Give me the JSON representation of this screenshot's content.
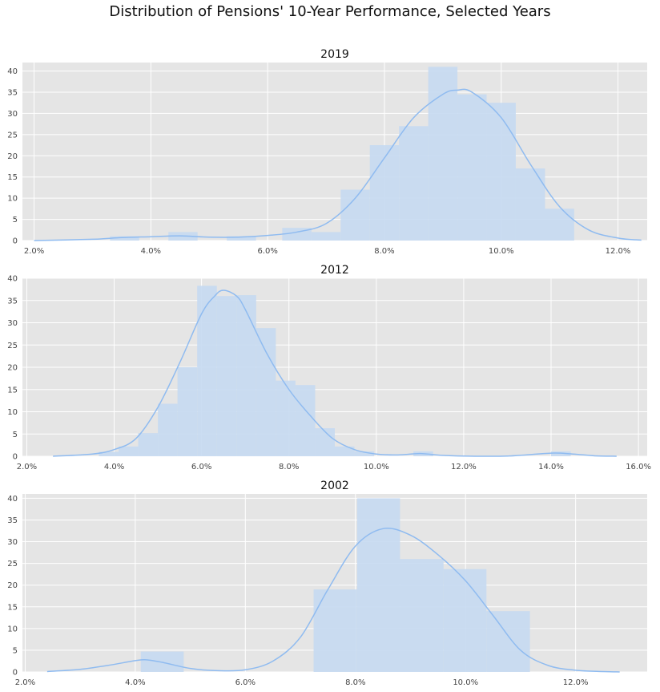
{
  "figure": {
    "title": "Distribution of Pensions' 10-Year Performance, Selected Years"
  },
  "style": {
    "plot_background": "#e5e5e5",
    "grid_color": "#ffffff",
    "bar_color": "#c5d9f1",
    "kde_color": "#8fbbf0",
    "text_color": "#111111"
  },
  "chart_data": [
    {
      "type": "bar",
      "title": "2019",
      "xlabel": "",
      "ylabel": "",
      "xlim": [
        1.8,
        12.5
      ],
      "ylim": [
        0,
        42
      ],
      "grid": true,
      "x_ticks": [
        2,
        4,
        6,
        8,
        10,
        12
      ],
      "x_tick_labels": [
        "2.0%",
        "4.0%",
        "6.0%",
        "8.0%",
        "10.0%",
        "12.0%"
      ],
      "y_ticks": [
        0,
        5,
        10,
        15,
        20,
        25,
        30,
        35,
        40
      ],
      "y_tick_labels": [
        "0",
        "5",
        "10",
        "15",
        "20",
        "25",
        "30",
        "35",
        "40"
      ],
      "bins": [
        {
          "x0": 3.3,
          "x1": 3.8,
          "count": 1
        },
        {
          "x0": 4.3,
          "x1": 4.8,
          "count": 2
        },
        {
          "x0": 5.3,
          "x1": 5.8,
          "count": 1
        },
        {
          "x0": 6.25,
          "x1": 6.75,
          "count": 3
        },
        {
          "x0": 6.75,
          "x1": 7.25,
          "count": 2
        },
        {
          "x0": 7.25,
          "x1": 7.75,
          "count": 12
        },
        {
          "x0": 7.75,
          "x1": 8.25,
          "count": 22.5
        },
        {
          "x0": 8.25,
          "x1": 8.75,
          "count": 27
        },
        {
          "x0": 8.75,
          "x1": 9.25,
          "count": 41
        },
        {
          "x0": 9.25,
          "x1": 9.75,
          "count": 34.5
        },
        {
          "x0": 9.75,
          "x1": 10.25,
          "count": 32.5
        },
        {
          "x0": 10.25,
          "x1": 10.75,
          "count": 17
        },
        {
          "x0": 10.75,
          "x1": 11.25,
          "count": 7.5
        }
      ],
      "kde": {
        "x": [
          2.0,
          3.0,
          3.5,
          4.0,
          4.5,
          5.0,
          5.5,
          6.0,
          6.5,
          7.0,
          7.5,
          8.0,
          8.5,
          9.0,
          9.25,
          9.5,
          10.0,
          10.5,
          11.0,
          11.5,
          12.0,
          12.4
        ],
        "y": [
          0,
          0.3,
          0.7,
          0.9,
          1.1,
          0.8,
          0.8,
          1.2,
          2.0,
          4.0,
          10,
          19.5,
          29,
          34.5,
          35.5,
          35,
          29,
          18,
          8,
          2.5,
          0.6,
          0.1
        ]
      }
    },
    {
      "type": "bar",
      "title": "2012",
      "xlabel": "",
      "ylabel": "",
      "xlim": [
        1.9,
        16.2
      ],
      "ylim": [
        0,
        40
      ],
      "grid": true,
      "x_ticks": [
        2,
        4,
        6,
        8,
        10,
        12,
        14,
        16
      ],
      "x_tick_labels": [
        "2.0%",
        "4.0%",
        "6.0%",
        "8.0%",
        "10.0%",
        "12.0%",
        "14.0%",
        "16.0%"
      ],
      "y_ticks": [
        0,
        5,
        10,
        15,
        20,
        25,
        30,
        35,
        40
      ],
      "y_tick_labels": [
        "0",
        "5",
        "10",
        "15",
        "20",
        "25",
        "30",
        "35",
        "40"
      ],
      "bins": [
        {
          "x0": 3.65,
          "x1": 4.1,
          "count": 1
        },
        {
          "x0": 4.1,
          "x1": 4.55,
          "count": 2.2
        },
        {
          "x0": 4.55,
          "x1": 5.0,
          "count": 5.2
        },
        {
          "x0": 5.0,
          "x1": 5.45,
          "count": 11.8
        },
        {
          "x0": 5.45,
          "x1": 5.9,
          "count": 20
        },
        {
          "x0": 5.9,
          "x1": 6.35,
          "count": 38.3
        },
        {
          "x0": 6.35,
          "x1": 6.8,
          "count": 36
        },
        {
          "x0": 6.8,
          "x1": 7.25,
          "count": 36.2
        },
        {
          "x0": 7.25,
          "x1": 7.7,
          "count": 28.8
        },
        {
          "x0": 7.7,
          "x1": 8.15,
          "count": 17
        },
        {
          "x0": 8.15,
          "x1": 8.6,
          "count": 16
        },
        {
          "x0": 8.6,
          "x1": 9.05,
          "count": 6.3
        },
        {
          "x0": 9.05,
          "x1": 9.5,
          "count": 2.2
        },
        {
          "x0": 9.5,
          "x1": 9.95,
          "count": 1.1
        },
        {
          "x0": 10.85,
          "x1": 11.3,
          "count": 1.1
        },
        {
          "x0": 14.0,
          "x1": 14.45,
          "count": 1.1
        }
      ],
      "kde": {
        "x": [
          2.6,
          3.5,
          4.0,
          4.5,
          5.0,
          5.5,
          6.0,
          6.3,
          6.5,
          6.8,
          7.0,
          7.5,
          8.0,
          8.5,
          9.0,
          9.5,
          10.0,
          10.5,
          11.0,
          11.5,
          12.0,
          13.0,
          14.0,
          14.5,
          15.0,
          15.5
        ],
        "y": [
          0,
          0.5,
          1.5,
          4,
          11,
          21,
          32,
          36,
          37.3,
          36,
          33,
          23,
          15,
          9,
          4,
          1.5,
          0.5,
          0.3,
          0.6,
          0.2,
          0.05,
          0.05,
          0.7,
          0.5,
          0.1,
          0
        ]
      }
    },
    {
      "type": "bar",
      "title": "2002",
      "xlabel": "",
      "ylabel": "",
      "xlim": [
        1.95,
        13.3
      ],
      "ylim": [
        0,
        41
      ],
      "grid": true,
      "x_ticks": [
        2,
        4,
        6,
        8,
        10,
        12
      ],
      "x_tick_labels": [
        "2.0%",
        "4.0%",
        "6.0%",
        "8.0%",
        "10.0%",
        "12.0%"
      ],
      "y_ticks": [
        0,
        5,
        10,
        15,
        20,
        25,
        30,
        35,
        40
      ],
      "y_tick_labels": [
        "0",
        "5",
        "10",
        "15",
        "20",
        "25",
        "30",
        "35",
        "40"
      ],
      "bins": [
        {
          "x0": 4.1,
          "x1": 4.88,
          "count": 4.7
        },
        {
          "x0": 7.24,
          "x1": 8.03,
          "count": 19
        },
        {
          "x0": 8.03,
          "x1": 8.81,
          "count": 40
        },
        {
          "x0": 8.81,
          "x1": 9.6,
          "count": 26
        },
        {
          "x0": 9.6,
          "x1": 10.38,
          "count": 23.7
        },
        {
          "x0": 10.38,
          "x1": 11.17,
          "count": 14
        }
      ],
      "kde": {
        "x": [
          2.4,
          3.0,
          3.5,
          4.0,
          4.2,
          4.5,
          5.0,
          5.5,
          6.0,
          6.5,
          7.0,
          7.5,
          8.0,
          8.5,
          9.0,
          9.5,
          10.0,
          10.5,
          11.0,
          11.5,
          12.0,
          12.5,
          12.8
        ],
        "y": [
          0.1,
          0.6,
          1.5,
          2.6,
          2.8,
          2.2,
          0.8,
          0.3,
          0.5,
          2.5,
          8,
          19,
          29,
          33,
          31.5,
          27,
          21,
          13,
          5,
          1.5,
          0.4,
          0.1,
          0
        ]
      }
    }
  ]
}
